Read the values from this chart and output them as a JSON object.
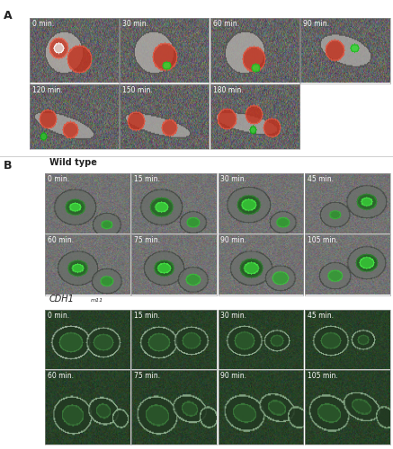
{
  "fig_width": 4.37,
  "fig_height": 5.0,
  "dpi": 100,
  "bg": "#ffffff",
  "panel_A_label": "A",
  "panel_B_label": "B",
  "A_times_r1": [
    "0 min.",
    "30 min.",
    "60 min.",
    "90 min."
  ],
  "A_times_r2": [
    "120 min.",
    "150 min.",
    "180 min."
  ],
  "B_wt_label": "Wild type",
  "B_times_r1": [
    "0 min.",
    "15 min.",
    "30 min.",
    "45 min."
  ],
  "B_times_r2": [
    "60 min.",
    "75 min.",
    "90 min.",
    "105 min."
  ],
  "A_bg": "#707070",
  "wt_bg": "#808080",
  "cdh_bg": "#2a3d2a",
  "time_fs": 5.5,
  "label_fs": 9,
  "sublabel_fs": 7
}
